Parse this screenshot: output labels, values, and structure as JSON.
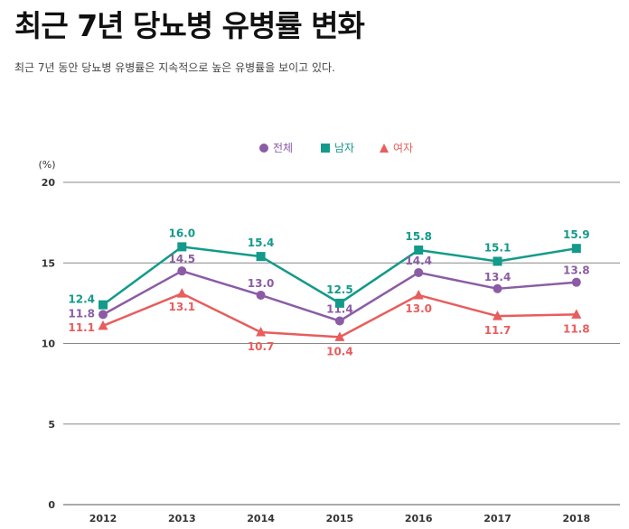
{
  "page": {
    "title": "최근 7년 당뇨병 유병률 변화",
    "subtitle": "최근 7년 동안 당뇨병 유병률은 지속적으로 높은 유병률을 보이고 있다."
  },
  "chart_data": {
    "type": "line",
    "categories": [
      "2012",
      "2013",
      "2014",
      "2015",
      "2016",
      "2017",
      "2018"
    ],
    "y_unit": "(%)",
    "ylim": [
      0,
      20
    ],
    "yticks": [
      0,
      5,
      10,
      15,
      20
    ],
    "grid": "horizontal",
    "legend_position": "top-center",
    "series": [
      {
        "name": "전체",
        "color": "#8b5ca5",
        "marker": "circle",
        "values": [
          11.8,
          14.5,
          13.0,
          11.4,
          14.4,
          13.4,
          13.8
        ]
      },
      {
        "name": "남자",
        "color": "#139a8a",
        "marker": "square",
        "values": [
          12.4,
          16.0,
          15.4,
          12.5,
          15.8,
          15.1,
          15.9
        ]
      },
      {
        "name": "여자",
        "color": "#e85d5d",
        "marker": "triangle",
        "values": [
          11.1,
          13.1,
          10.7,
          10.4,
          13.0,
          11.7,
          11.8
        ]
      }
    ]
  }
}
